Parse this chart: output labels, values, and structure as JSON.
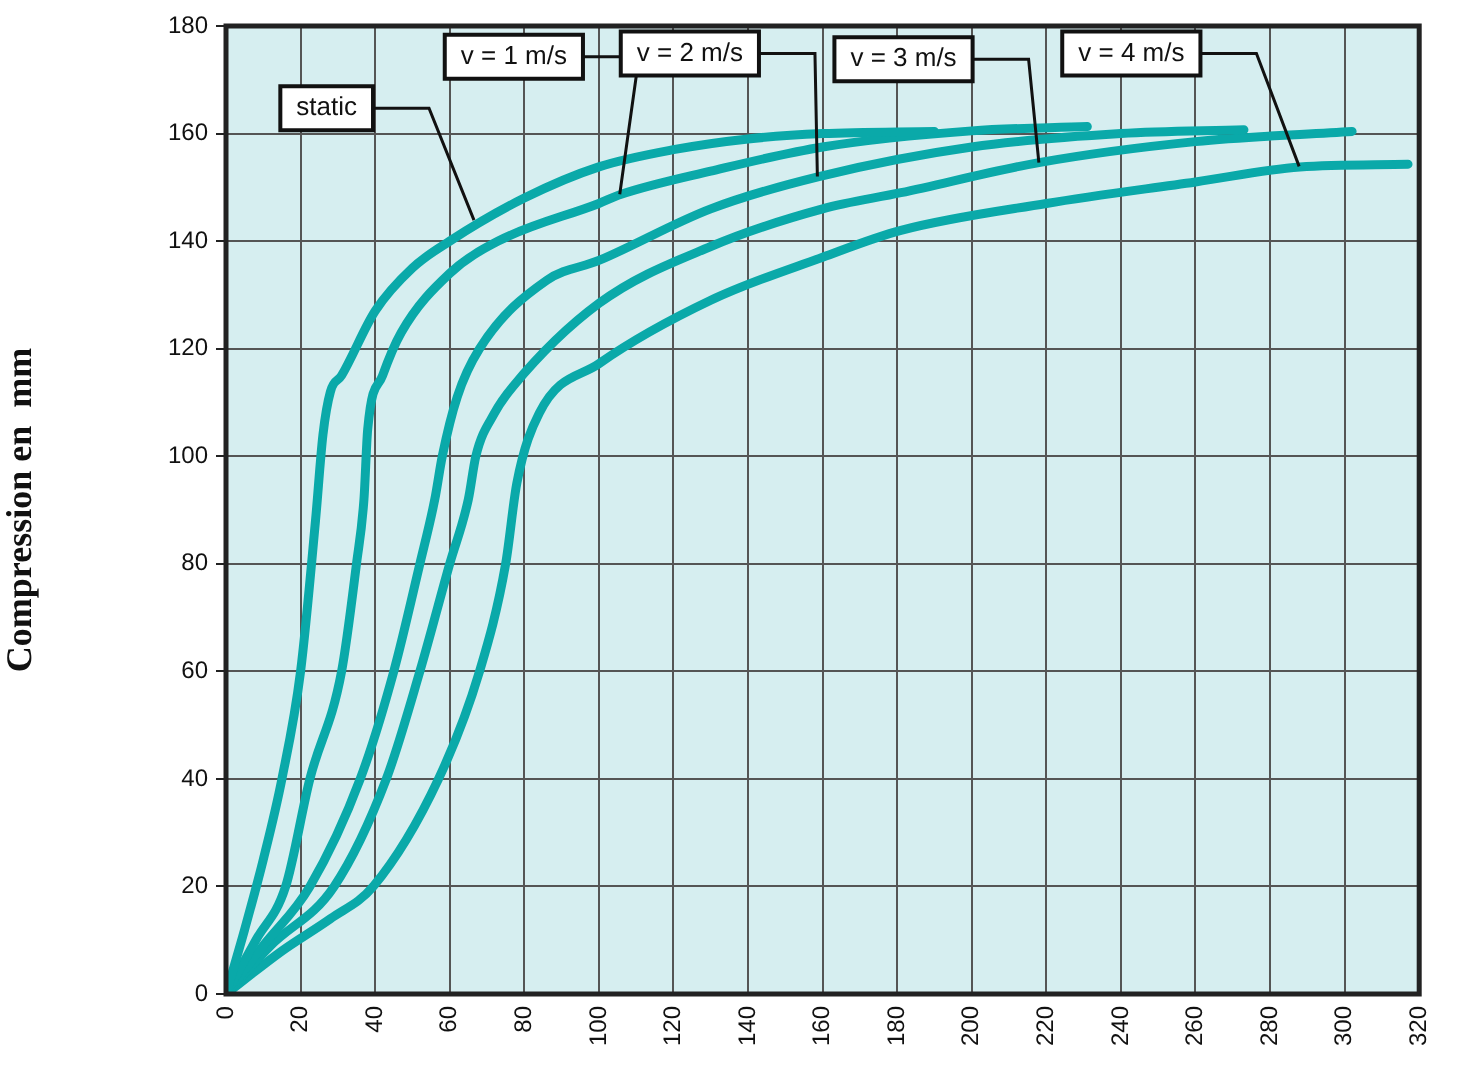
{
  "chart_data": {
    "type": "line",
    "ylabel": "Compression en  mm",
    "xlim": [
      0,
      320
    ],
    "xticks": [
      0,
      20,
      40,
      60,
      80,
      100,
      120,
      140,
      160,
      180,
      200,
      220,
      240,
      260,
      280,
      300,
      320
    ],
    "ylim": [
      0,
      180
    ],
    "yticks": [
      0,
      20,
      40,
      60,
      80,
      100,
      120,
      140,
      160,
      180
    ],
    "grid": true,
    "legend": false,
    "marker": "none",
    "line_style": "solid",
    "series": [
      {
        "name": "static",
        "color": "#0aa9a9",
        "x": [
          0,
          5,
          10,
          15,
          20,
          24,
          26,
          28,
          31,
          40,
          50,
          60,
          80,
          100,
          120,
          140,
          160,
          190
        ],
        "values": [
          0,
          12,
          25,
          40,
          60,
          88,
          104,
          112,
          115,
          127,
          135,
          140,
          148,
          153.8,
          157,
          159,
          160,
          160.4
        ]
      },
      {
        "name": "v = 1 m/s",
        "color": "#0aa9a9",
        "x": [
          0,
          8,
          16,
          22.5,
          31,
          35,
          37,
          38,
          42,
          47,
          60,
          73,
          100,
          106,
          130,
          160,
          200,
          231
        ],
        "values": [
          0,
          10,
          20,
          40,
          60,
          80,
          92,
          105,
          115,
          123,
          134,
          140,
          147,
          148.7,
          153,
          157.5,
          160.5,
          161.3
        ]
      },
      {
        "name": "v = 2 m/s",
        "color": "#0aa9a9",
        "x": [
          0,
          10,
          22.5,
          36,
          45,
          52,
          56,
          58,
          62,
          68,
          86,
          100,
          130,
          159,
          200,
          240,
          273
        ],
        "values": [
          0,
          9,
          20,
          40,
          60,
          80,
          92,
          100,
          111,
          120,
          132.7,
          136.4,
          146,
          152,
          157.5,
          160,
          160.7
        ]
      },
      {
        "name": "v = 3 m/s",
        "color": "#0aa9a9",
        "x": [
          0,
          12,
          29,
          43,
          52,
          60,
          65,
          67,
          72,
          77,
          100,
          130,
          160,
          181,
          218,
          260,
          302
        ],
        "values": [
          0,
          9,
          20,
          40,
          60,
          80,
          92,
          100,
          108,
          113,
          128.4,
          139,
          146,
          149,
          154.6,
          158.5,
          160.4
        ]
      },
      {
        "name": "v = 4 m/s",
        "color": "#0aa9a9",
        "x": [
          0,
          15,
          28,
          39.5,
          57,
          68,
          75,
          78,
          84,
          100,
          130,
          160,
          181,
          220,
          260,
          288,
          317
        ],
        "values": [
          0,
          8,
          14,
          20,
          40,
          60,
          80,
          95,
          108,
          117.2,
          129,
          137,
          142,
          147,
          151,
          153.8,
          154.3
        ]
      }
    ]
  }
}
